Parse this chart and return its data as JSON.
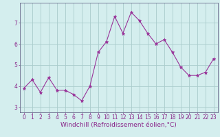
{
  "x": [
    0,
    1,
    2,
    3,
    4,
    5,
    6,
    7,
    8,
    9,
    10,
    11,
    12,
    13,
    14,
    15,
    16,
    17,
    18,
    19,
    20,
    21,
    22,
    23
  ],
  "y": [
    3.9,
    4.3,
    3.7,
    4.4,
    3.8,
    3.8,
    3.6,
    3.3,
    4.0,
    5.6,
    6.1,
    7.3,
    6.5,
    7.5,
    7.1,
    6.5,
    6.0,
    6.2,
    5.6,
    4.9,
    4.5,
    4.5,
    4.65,
    5.3
  ],
  "line_color": "#993399",
  "marker": "*",
  "marker_size": 3.5,
  "background_color": "#d4eeee",
  "grid_color": "#aacccc",
  "xlabel": "Windchill (Refroidissement éolien,°C)",
  "ylabel": "",
  "title": "",
  "xlim": [
    -0.5,
    23.5
  ],
  "ylim": [
    2.75,
    7.95
  ],
  "yticks": [
    3,
    4,
    5,
    6,
    7
  ],
  "xticks": [
    0,
    1,
    2,
    3,
    4,
    5,
    6,
    7,
    8,
    9,
    10,
    11,
    12,
    13,
    14,
    15,
    16,
    17,
    18,
    19,
    20,
    21,
    22,
    23
  ],
  "font_color": "#882288",
  "tick_fontsize": 5.5,
  "label_fontsize": 6.5,
  "spine_color": "#666688"
}
